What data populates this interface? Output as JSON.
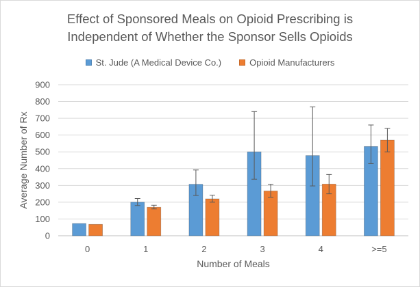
{
  "chart_data": {
    "type": "bar",
    "title_line1": "Effect of Sponsored Meals on Opioid Prescribing is",
    "title_line2": "Independent of Whether the Sponsor Sells Opioids",
    "xlabel": "Number of Meals",
    "ylabel": "Average Number of Rx",
    "categories": [
      "0",
      "1",
      "2",
      "3",
      "4",
      ">=5"
    ],
    "ylim": [
      0,
      900
    ],
    "yticks": [
      0,
      100,
      200,
      300,
      400,
      500,
      600,
      700,
      800,
      900
    ],
    "grid": true,
    "legend_position": "top",
    "series": [
      {
        "name": "St. Jude (A Medical Device Co.)",
        "color": "#5b9bd5",
        "values": [
          73,
          200,
          307,
          500,
          478,
          532
        ],
        "error_low": [
          73,
          180,
          240,
          337,
          297,
          430
        ],
        "error_high": [
          73,
          222,
          392,
          740,
          768,
          660
        ]
      },
      {
        "name": "Opioid Manufacturers",
        "color": "#ed7d31",
        "values": [
          68,
          170,
          220,
          267,
          308,
          570
        ],
        "error_low": [
          68,
          160,
          200,
          230,
          250,
          500
        ],
        "error_high": [
          68,
          182,
          242,
          307,
          365,
          640
        ]
      }
    ]
  }
}
